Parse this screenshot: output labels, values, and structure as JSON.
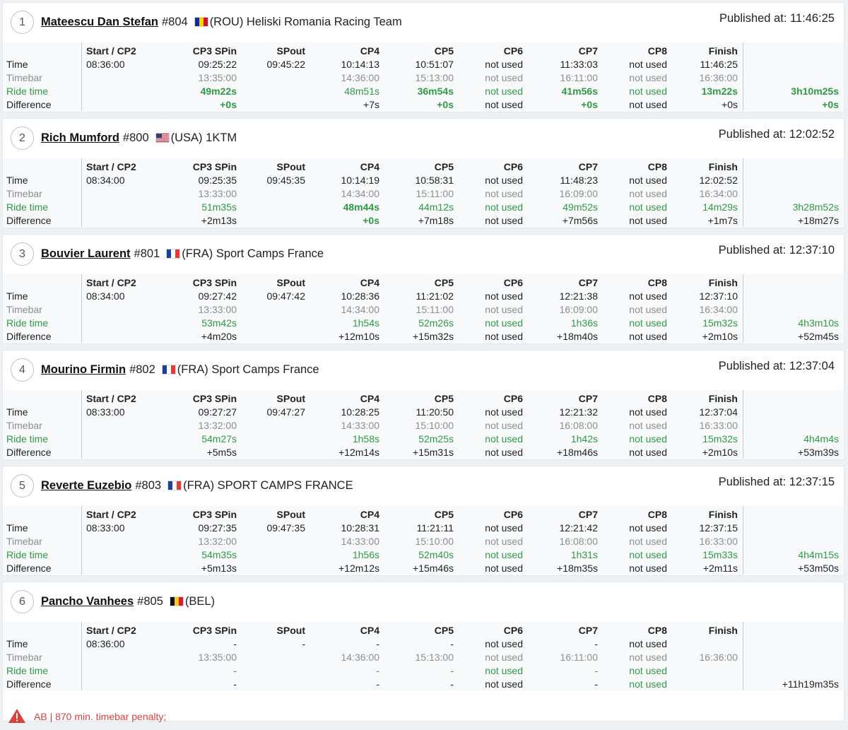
{
  "published_prefix": "Published at:",
  "columns": [
    "Start / CP2",
    "CP3 SPin",
    "SPout",
    "CP4",
    "CP5",
    "CP6",
    "CP7",
    "CP8",
    "Finish"
  ],
  "row_labels": [
    "Time",
    "Timebar",
    "Ride time",
    "Difference"
  ],
  "colors": {
    "ride_time": "#2f9a43",
    "timebar": "#8e8e8e",
    "penalty": "#d9413f"
  },
  "results": [
    {
      "rank": "1",
      "name": "Mateescu Dan Stefan",
      "bib": "#804",
      "flag": "ROU",
      "team": "(ROU) Heliski Romania Racing Team",
      "published": "11:46:25",
      "time": [
        "08:36:00",
        "09:25:22",
        "09:45:22",
        "10:14:13",
        "10:51:07",
        "not used",
        "11:33:03",
        "not used",
        "11:46:25"
      ],
      "timebar": [
        "",
        "13:35:00",
        "",
        "14:36:00",
        "15:13:00",
        "not used",
        "16:11:00",
        "not used",
        "16:36:00"
      ],
      "ride": [
        "",
        "49m22s",
        "",
        "48m51s",
        "36m54s",
        "not used",
        "41m56s",
        "not used",
        "13m22s"
      ],
      "ride_best": [
        false,
        true,
        false,
        false,
        true,
        false,
        true,
        false,
        true
      ],
      "diff": [
        "",
        "+0s",
        "",
        "+7s",
        "+0s",
        "not used",
        "+0s",
        "not used",
        "+0s"
      ],
      "diff_best": [
        false,
        true,
        false,
        false,
        true,
        false,
        true,
        false,
        false
      ],
      "total_ride": "3h10m25s",
      "total_ride_best": true,
      "total_diff": "+0s",
      "total_diff_best": true
    },
    {
      "rank": "2",
      "name": "Rich Mumford",
      "bib": "#800",
      "flag": "USA",
      "team": "(USA) 1KTM",
      "published": "12:02:52",
      "time": [
        "08:34:00",
        "09:25:35",
        "09:45:35",
        "10:14:19",
        "10:58:31",
        "not used",
        "11:48:23",
        "not used",
        "12:02:52"
      ],
      "timebar": [
        "",
        "13:33:00",
        "",
        "14:34:00",
        "15:11:00",
        "not used",
        "16:09:00",
        "not used",
        "16:34:00"
      ],
      "ride": [
        "",
        "51m35s",
        "",
        "48m44s",
        "44m12s",
        "not used",
        "49m52s",
        "not used",
        "14m29s"
      ],
      "ride_best": [
        false,
        false,
        false,
        true,
        false,
        false,
        false,
        false,
        false
      ],
      "diff": [
        "",
        "+2m13s",
        "",
        "+0s",
        "+7m18s",
        "not used",
        "+7m56s",
        "not used",
        "+1m7s"
      ],
      "diff_best": [
        false,
        false,
        false,
        true,
        false,
        false,
        false,
        false,
        false
      ],
      "total_ride": "3h28m52s",
      "total_ride_best": false,
      "total_diff": "+18m27s",
      "total_diff_best": false
    },
    {
      "rank": "3",
      "name": "Bouvier Laurent",
      "bib": "#801",
      "flag": "FRA",
      "team": "(FRA) Sport Camps France",
      "published": "12:37:10",
      "time": [
        "08:34:00",
        "09:27:42",
        "09:47:42",
        "10:28:36",
        "11:21:02",
        "not used",
        "12:21:38",
        "not used",
        "12:37:10"
      ],
      "timebar": [
        "",
        "13:33:00",
        "",
        "14:34:00",
        "15:11:00",
        "not used",
        "16:09:00",
        "not used",
        "16:34:00"
      ],
      "ride": [
        "",
        "53m42s",
        "",
        "1h54s",
        "52m26s",
        "not used",
        "1h36s",
        "not used",
        "15m32s"
      ],
      "ride_best": [
        false,
        false,
        false,
        false,
        false,
        false,
        false,
        false,
        false
      ],
      "diff": [
        "",
        "+4m20s",
        "",
        "+12m10s",
        "+15m32s",
        "not used",
        "+18m40s",
        "not used",
        "+2m10s"
      ],
      "diff_best": [
        false,
        false,
        false,
        false,
        false,
        false,
        false,
        false,
        false
      ],
      "total_ride": "4h3m10s",
      "total_ride_best": false,
      "total_diff": "+52m45s",
      "total_diff_best": false
    },
    {
      "rank": "4",
      "name": "Mourino Firmin",
      "bib": "#802",
      "flag": "FRA",
      "team": "(FRA) Sport Camps France",
      "published": "12:37:04",
      "time": [
        "08:33:00",
        "09:27:27",
        "09:47:27",
        "10:28:25",
        "11:20:50",
        "not used",
        "12:21:32",
        "not used",
        "12:37:04"
      ],
      "timebar": [
        "",
        "13:32:00",
        "",
        "14:33:00",
        "15:10:00",
        "not used",
        "16:08:00",
        "not used",
        "16:33:00"
      ],
      "ride": [
        "",
        "54m27s",
        "",
        "1h58s",
        "52m25s",
        "not used",
        "1h42s",
        "not used",
        "15m32s"
      ],
      "ride_best": [
        false,
        false,
        false,
        false,
        false,
        false,
        false,
        false,
        false
      ],
      "diff": [
        "",
        "+5m5s",
        "",
        "+12m14s",
        "+15m31s",
        "not used",
        "+18m46s",
        "not used",
        "+2m10s"
      ],
      "diff_best": [
        false,
        false,
        false,
        false,
        false,
        false,
        false,
        false,
        false
      ],
      "total_ride": "4h4m4s",
      "total_ride_best": false,
      "total_diff": "+53m39s",
      "total_diff_best": false
    },
    {
      "rank": "5",
      "name": "Reverte Euzebio",
      "bib": "#803",
      "flag": "FRA",
      "team": "(FRA) SPORT CAMPS FRANCE",
      "published": "12:37:15",
      "time": [
        "08:33:00",
        "09:27:35",
        "09:47:35",
        "10:28:31",
        "11:21:11",
        "not used",
        "12:21:42",
        "not used",
        "12:37:15"
      ],
      "timebar": [
        "",
        "13:32:00",
        "",
        "14:33:00",
        "15:10:00",
        "not used",
        "16:08:00",
        "not used",
        "16:33:00"
      ],
      "ride": [
        "",
        "54m35s",
        "",
        "1h56s",
        "52m40s",
        "not used",
        "1h31s",
        "not used",
        "15m33s"
      ],
      "ride_best": [
        false,
        false,
        false,
        false,
        false,
        false,
        false,
        false,
        false
      ],
      "diff": [
        "",
        "+5m13s",
        "",
        "+12m12s",
        "+15m46s",
        "not used",
        "+18m35s",
        "not used",
        "+2m11s"
      ],
      "diff_best": [
        false,
        false,
        false,
        false,
        false,
        false,
        false,
        false,
        false
      ],
      "total_ride": "4h4m15s",
      "total_ride_best": false,
      "total_diff": "+53m50s",
      "total_diff_best": false
    },
    {
      "rank": "6",
      "name": "Pancho Vanhees",
      "bib": "#805",
      "flag": "BEL",
      "team": "(BEL)",
      "published": "",
      "time": [
        "08:36:00",
        "-",
        "-",
        "-",
        "-",
        "not used",
        "-",
        "not used",
        ""
      ],
      "timebar": [
        "",
        "13:35:00",
        "",
        "14:36:00",
        "15:13:00",
        "not used",
        "16:11:00",
        "not used",
        "16:36:00"
      ],
      "ride": [
        "",
        "-",
        "",
        "-",
        "-",
        "not used",
        "-",
        "not used",
        ""
      ],
      "ride_best": [
        false,
        false,
        false,
        false,
        false,
        false,
        false,
        false,
        false
      ],
      "diff": [
        "",
        "-",
        "",
        "-",
        "-",
        "not used",
        "-",
        "not used",
        ""
      ],
      "diff_best": [
        false,
        false,
        false,
        false,
        false,
        false,
        false,
        false,
        false
      ],
      "total_ride": "",
      "total_ride_best": false,
      "total_diff": "+11h19m35s",
      "total_diff_best": false,
      "penalty": "AB | 870 min. timebar penalty;"
    }
  ]
}
